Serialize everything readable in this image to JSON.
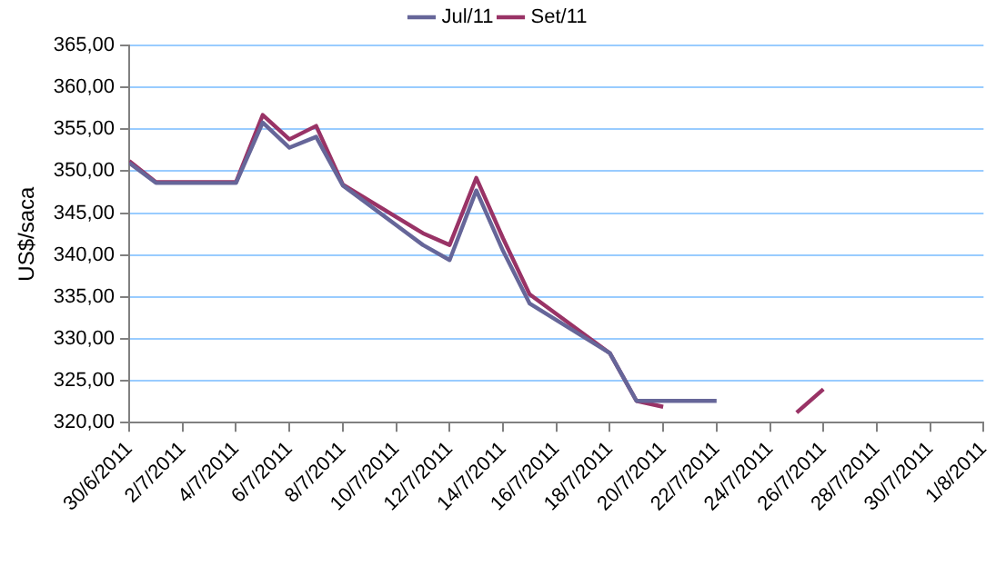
{
  "chart_data": {
    "type": "line",
    "ylabel": "US$/saca",
    "legend": "top",
    "grid": "y",
    "marker": "none",
    "line_style": "solid",
    "x": [
      "2011-06-30",
      "2011-07-01",
      "2011-07-04",
      "2011-07-05",
      "2011-07-06",
      "2011-07-07",
      "2011-07-08",
      "2011-07-11",
      "2011-07-12",
      "2011-07-13",
      "2011-07-14",
      "2011-07-15",
      "2011-07-18",
      "2011-07-19",
      "2011-07-20",
      "2011-07-21",
      "2011-07-22",
      "2011-07-25",
      "2011-07-26"
    ],
    "series": [
      {
        "name": "Jul/11",
        "color": "#666699",
        "values": [
          351.0,
          348.6,
          348.6,
          355.8,
          352.8,
          354.1,
          348.3,
          341.2,
          339.4,
          347.7,
          340.5,
          334.2,
          328.3,
          322.6,
          322.6,
          322.6,
          322.6,
          null,
          null
        ]
      },
      {
        "name": "Set/11",
        "color": "#993366",
        "values": [
          351.2,
          348.7,
          348.7,
          356.7,
          353.8,
          355.4,
          348.4,
          342.6,
          341.2,
          349.2,
          342.0,
          335.3,
          328.3,
          322.6,
          321.9,
          null,
          null,
          321.2,
          324.0
        ]
      }
    ],
    "xlim": [
      "2011-06-30",
      "2011-08-01"
    ],
    "xticks": [
      {
        "value": "2011-06-30",
        "label": "30/6/2011"
      },
      {
        "value": "2011-07-02",
        "label": "2/7/2011"
      },
      {
        "value": "2011-07-04",
        "label": "4/7/2011"
      },
      {
        "value": "2011-07-06",
        "label": "6/7/2011"
      },
      {
        "value": "2011-07-08",
        "label": "8/7/2011"
      },
      {
        "value": "2011-07-10",
        "label": "10/7/2011"
      },
      {
        "value": "2011-07-12",
        "label": "12/7/2011"
      },
      {
        "value": "2011-07-14",
        "label": "14/7/2011"
      },
      {
        "value": "2011-07-16",
        "label": "16/7/2011"
      },
      {
        "value": "2011-07-18",
        "label": "18/7/2011"
      },
      {
        "value": "2011-07-20",
        "label": "20/7/2011"
      },
      {
        "value": "2011-07-22",
        "label": "22/7/2011"
      },
      {
        "value": "2011-07-24",
        "label": "24/7/2011"
      },
      {
        "value": "2011-07-26",
        "label": "26/7/2011"
      },
      {
        "value": "2011-07-28",
        "label": "28/7/2011"
      },
      {
        "value": "2011-07-30",
        "label": "30/7/2011"
      },
      {
        "value": "2011-08-01",
        "label": "1/8/2011"
      }
    ],
    "ylim": [
      320,
      365
    ],
    "yticks": [
      {
        "value": 320,
        "label": "320,00"
      },
      {
        "value": 325,
        "label": "325,00"
      },
      {
        "value": 330,
        "label": "330,00"
      },
      {
        "value": 335,
        "label": "335,00"
      },
      {
        "value": 340,
        "label": "340,00"
      },
      {
        "value": 345,
        "label": "345,00"
      },
      {
        "value": 350,
        "label": "350,00"
      },
      {
        "value": 355,
        "label": "355,00"
      },
      {
        "value": 360,
        "label": "360,00"
      },
      {
        "value": 365,
        "label": "365,00"
      }
    ]
  }
}
